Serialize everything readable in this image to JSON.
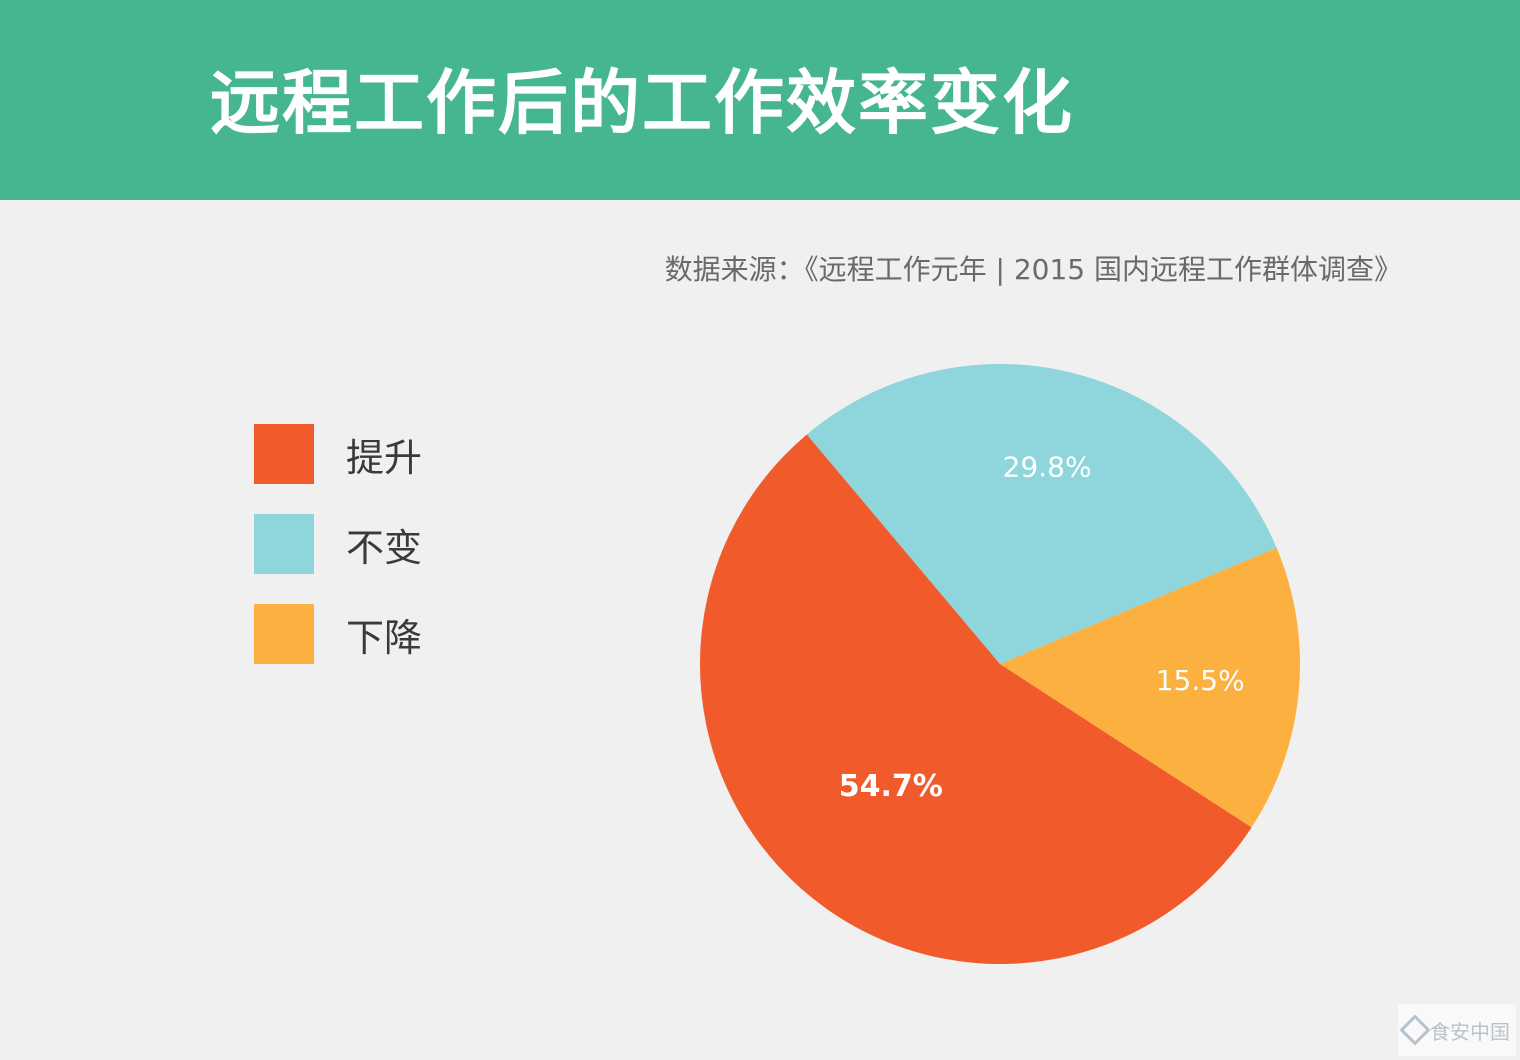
{
  "header": {
    "title": "远程工作后的工作效率变化",
    "background_color": "#45b68f"
  },
  "source_note": "数据来源：《远程工作元年 | 2015 国内远程工作群体调查》",
  "watermark": {
    "text": "食安中国"
  },
  "chart_data": {
    "type": "pie",
    "title": "远程工作后的工作效率变化",
    "legend_position": "left",
    "categories": [
      "提升",
      "不变",
      "下降"
    ],
    "values": [
      54.7,
      29.8,
      15.5
    ],
    "labels": [
      "54.7%",
      "29.8%",
      "15.5%"
    ],
    "colors": [
      "#f15a2b",
      "#8fd5dc",
      "#fbb040"
    ]
  }
}
